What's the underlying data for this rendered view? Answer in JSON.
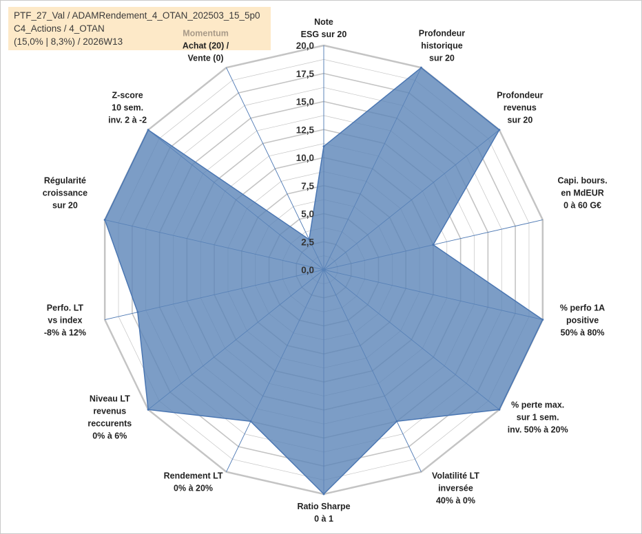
{
  "info": {
    "line1": "PTF_27_Val / ADAMRendement_4_OTAN_202503_15_5p0",
    "line2": "C4_Actions / 4_OTAN",
    "line3": "(15,0% | 8,3%) / 2026W13"
  },
  "chart_data": {
    "type": "radar",
    "rlim": [
      0,
      20
    ],
    "ticks": [
      "0,0",
      "2,5",
      "5,0",
      "7,5",
      "10,0",
      "12,5",
      "15,0",
      "17,5",
      "20,0"
    ],
    "axes": [
      {
        "lines": [
          "Note",
          "ESG sur 20"
        ],
        "value": 11
      },
      {
        "lines": [
          "Profondeur",
          "historique",
          "sur 20"
        ],
        "value": 20
      },
      {
        "lines": [
          "Profondeur",
          "revenus",
          "sur 20"
        ],
        "value": 20
      },
      {
        "lines": [
          "Capi. bours.",
          "en MdEUR",
          "0 à 60 G€"
        ],
        "value": 10
      },
      {
        "lines": [
          "% perfo 1A",
          "positive",
          "50% à 80%"
        ],
        "value": 20
      },
      {
        "lines": [
          "% perte max.",
          "sur 1 sem.",
          "inv. 50% à 20%"
        ],
        "value": 20
      },
      {
        "lines": [
          "Volatilité LT",
          "inversée",
          "40% à 0%"
        ],
        "value": 15
      },
      {
        "lines": [
          "Ratio Sharpe",
          "0 à 1"
        ],
        "value": 20
      },
      {
        "lines": [
          "Rendement LT",
          "0% à 20%"
        ],
        "value": 15
      },
      {
        "lines": [
          "Niveau LT",
          "revenus",
          "reccurents",
          "0% à 6%"
        ],
        "value": 20
      },
      {
        "lines": [
          "Perfo. LT",
          "vs index",
          "-8% à 12%"
        ],
        "value": 17
      },
      {
        "lines": [
          "Régularité",
          "croissance",
          "sur 20"
        ],
        "value": 20
      },
      {
        "lines": [
          "Z-score",
          "10 sem.",
          "inv. 2 à -2"
        ],
        "value": 20
      },
      {
        "lines": [
          "Momentum",
          "Achat (20) /",
          "Vente (0)"
        ],
        "value": 3
      }
    ],
    "series": [
      {
        "color": "#5b84b8"
      }
    ],
    "grid": true,
    "colors": {
      "fill": "#5b84b8",
      "stroke": "#4a76b2",
      "grid": "#c4c4c4",
      "spoke": "#4a76b2",
      "momentum": "#a89a88"
    }
  }
}
